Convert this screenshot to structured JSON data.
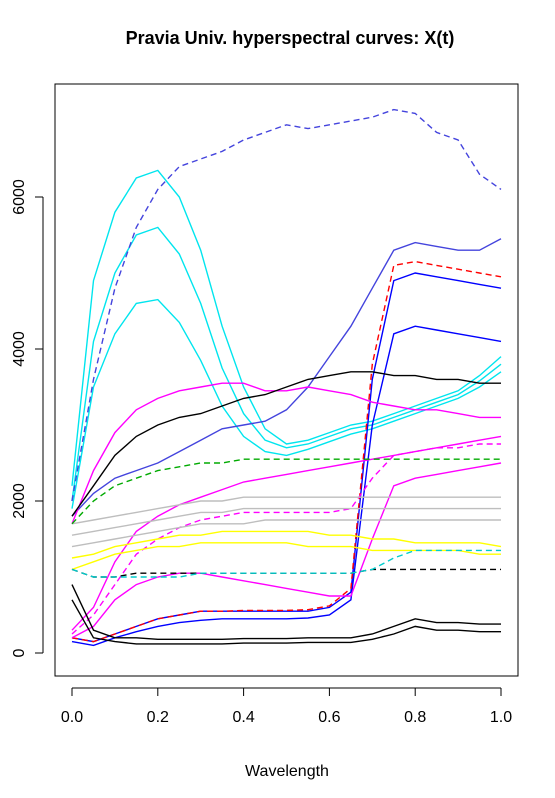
{
  "chart_data": {
    "type": "line",
    "title": "Pravia Univ. hyperspectral curves: X(t)",
    "xlabel": "Wavelength",
    "ylabel": "",
    "xlim": [
      0,
      1
    ],
    "ylim": [
      -200,
      7400
    ],
    "xticks": [
      "0.0",
      "0.2",
      "0.4",
      "0.6",
      "0.8",
      "1.0"
    ],
    "yticks": [
      "0",
      "2000",
      "4000",
      "6000"
    ],
    "grid": false,
    "legend": "none",
    "x": [
      0.0,
      0.05,
      0.1,
      0.15,
      0.2,
      0.25,
      0.3,
      0.35,
      0.4,
      0.45,
      0.5,
      0.55,
      0.6,
      0.65,
      0.7,
      0.75,
      0.8,
      0.85,
      0.9,
      0.95,
      1.0
    ],
    "series": [
      {
        "color": "#00e5ee",
        "style": "solid",
        "values": [
          2200,
          4900,
          5800,
          6250,
          6350,
          6000,
          5300,
          4300,
          3500,
          2950,
          2750,
          2800,
          2900,
          3000,
          3050,
          3150,
          3250,
          3350,
          3450,
          3650,
          3900
        ]
      },
      {
        "color": "#00e5ee",
        "style": "solid",
        "values": [
          1900,
          3500,
          4200,
          4600,
          4650,
          4350,
          3850,
          3250,
          2850,
          2650,
          2600,
          2680,
          2780,
          2880,
          2950,
          3050,
          3150,
          3250,
          3350,
          3500,
          3700
        ]
      },
      {
        "color": "#00e5ee",
        "style": "solid",
        "values": [
          2000,
          4100,
          5000,
          5500,
          5600,
          5250,
          4600,
          3750,
          3150,
          2800,
          2700,
          2750,
          2850,
          2950,
          3000,
          3100,
          3200,
          3300,
          3400,
          3580,
          3800
        ]
      },
      {
        "color": "#4444dd",
        "style": "dashed",
        "values": [
          2000,
          3600,
          4800,
          5600,
          6100,
          6400,
          6500,
          6600,
          6750,
          6850,
          6950,
          6900,
          6950,
          7000,
          7050,
          7150,
          7100,
          6850,
          6750,
          6300,
          6100
        ]
      },
      {
        "color": "#4444dd",
        "style": "solid",
        "values": [
          1800,
          2100,
          2300,
          2400,
          2500,
          2650,
          2800,
          2950,
          3000,
          3050,
          3200,
          3500,
          3900,
          4300,
          4800,
          5300,
          5400,
          5350,
          5300,
          5300,
          5450
        ]
      },
      {
        "color": "#0000ff",
        "style": "solid",
        "values": [
          200,
          150,
          250,
          350,
          450,
          500,
          550,
          550,
          550,
          550,
          550,
          550,
          600,
          800,
          3600,
          4900,
          5000,
          4950,
          4900,
          4850,
          4800
        ]
      },
      {
        "color": "#0000ff",
        "style": "solid",
        "values": [
          150,
          100,
          200,
          280,
          350,
          400,
          430,
          450,
          450,
          450,
          450,
          460,
          500,
          700,
          3000,
          4200,
          4300,
          4250,
          4200,
          4150,
          4100
        ]
      },
      {
        "color": "#ff0000",
        "style": "dashed",
        "values": [
          200,
          150,
          250,
          350,
          450,
          500,
          550,
          550,
          560,
          560,
          560,
          570,
          620,
          850,
          3800,
          5100,
          5150,
          5100,
          5050,
          5000,
          4950
        ]
      },
      {
        "color": "#ff00ff",
        "style": "solid",
        "values": [
          300,
          600,
          1200,
          1600,
          1800,
          1950,
          2050,
          2150,
          2250,
          2300,
          2350,
          2400,
          2450,
          2500,
          2550,
          2600,
          2650,
          2700,
          2750,
          2800,
          2850
        ]
      },
      {
        "color": "#ff00ff",
        "style": "solid",
        "values": [
          200,
          350,
          700,
          900,
          1000,
          1050,
          1050,
          1000,
          950,
          900,
          850,
          800,
          750,
          750,
          1500,
          2200,
          2300,
          2350,
          2400,
          2450,
          2500
        ]
      },
      {
        "color": "#ff00ff",
        "style": "solid",
        "values": [
          1700,
          2400,
          2900,
          3200,
          3350,
          3450,
          3500,
          3550,
          3550,
          3450,
          3450,
          3500,
          3450,
          3400,
          3300,
          3250,
          3200,
          3200,
          3150,
          3100,
          3100
        ]
      },
      {
        "color": "#ff00ff",
        "style": "dashed",
        "values": [
          250,
          500,
          900,
          1300,
          1500,
          1650,
          1750,
          1800,
          1850,
          1850,
          1850,
          1850,
          1850,
          1900,
          2300,
          2600,
          2650,
          2700,
          2700,
          2750,
          2750
        ]
      },
      {
        "color": "#ffff00",
        "style": "solid",
        "values": [
          1250,
          1300,
          1400,
          1450,
          1500,
          1550,
          1550,
          1600,
          1600,
          1600,
          1600,
          1600,
          1550,
          1550,
          1500,
          1500,
          1450,
          1450,
          1450,
          1450,
          1400
        ]
      },
      {
        "color": "#ffff00",
        "style": "solid",
        "values": [
          1100,
          1200,
          1300,
          1350,
          1400,
          1400,
          1450,
          1450,
          1450,
          1450,
          1450,
          1400,
          1400,
          1400,
          1350,
          1350,
          1350,
          1350,
          1350,
          1300,
          1300
        ]
      },
      {
        "color": "#bebebe",
        "style": "solid",
        "values": [
          1700,
          1750,
          1800,
          1850,
          1900,
          1950,
          2000,
          2000,
          2050,
          2050,
          2050,
          2050,
          2050,
          2050,
          2050,
          2050,
          2050,
          2050,
          2050,
          2050,
          2050
        ]
      },
      {
        "color": "#bebebe",
        "style": "solid",
        "values": [
          1400,
          1450,
          1500,
          1550,
          1600,
          1650,
          1700,
          1700,
          1700,
          1750,
          1750,
          1750,
          1750,
          1750,
          1750,
          1750,
          1750,
          1750,
          1750,
          1750,
          1750
        ]
      },
      {
        "color": "#bebebe",
        "style": "solid",
        "values": [
          1550,
          1600,
          1650,
          1700,
          1750,
          1800,
          1850,
          1850,
          1900,
          1900,
          1900,
          1900,
          1900,
          1900,
          1900,
          1900,
          1900,
          1900,
          1900,
          1900,
          1900
        ]
      },
      {
        "color": "#000000",
        "style": "solid",
        "values": [
          900,
          300,
          200,
          200,
          180,
          180,
          180,
          180,
          190,
          190,
          190,
          200,
          200,
          200,
          250,
          350,
          450,
          400,
          400,
          380,
          380
        ]
      },
      {
        "color": "#000000",
        "style": "solid",
        "values": [
          700,
          200,
          150,
          120,
          120,
          120,
          120,
          120,
          130,
          130,
          130,
          140,
          140,
          140,
          180,
          250,
          350,
          300,
          300,
          280,
          280
        ]
      },
      {
        "color": "#000000",
        "style": "dashed",
        "values": [
          1100,
          1000,
          1000,
          1050,
          1050,
          1050,
          1050,
          1050,
          1050,
          1050,
          1050,
          1050,
          1050,
          1050,
          1100,
          1100,
          1100,
          1100,
          1100,
          1100,
          1100
        ]
      },
      {
        "color": "#000000",
        "style": "solid",
        "values": [
          1800,
          2200,
          2600,
          2850,
          3000,
          3100,
          3150,
          3250,
          3350,
          3400,
          3500,
          3600,
          3650,
          3700,
          3700,
          3650,
          3650,
          3600,
          3600,
          3550,
          3550
        ]
      },
      {
        "color": "#00cccc",
        "style": "dashed",
        "values": [
          1100,
          1000,
          1000,
          1000,
          1000,
          1000,
          1050,
          1050,
          1050,
          1050,
          1050,
          1050,
          1050,
          1050,
          1100,
          1250,
          1350,
          1350,
          1350,
          1350,
          1350
        ]
      },
      {
        "color": "#00aa00",
        "style": "dashed",
        "values": [
          1700,
          2000,
          2200,
          2300,
          2400,
          2450,
          2500,
          2500,
          2550,
          2550,
          2550,
          2550,
          2550,
          2550,
          2550,
          2550,
          2550,
          2550,
          2550,
          2550,
          2550
        ]
      }
    ]
  }
}
